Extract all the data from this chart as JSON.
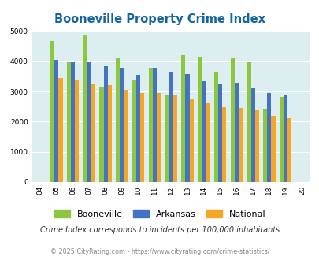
{
  "title": "Booneville Property Crime Index",
  "years": [
    "04",
    "05",
    "06",
    "07",
    "08",
    "09",
    "10",
    "11",
    "12",
    "13",
    "14",
    "15",
    "16",
    "17",
    "18",
    "19",
    "20"
  ],
  "booneville": [
    0,
    4680,
    3980,
    4870,
    3170,
    4110,
    3370,
    3800,
    2880,
    4210,
    4160,
    3640,
    4130,
    3970,
    2420,
    2810,
    0
  ],
  "arkansas": [
    0,
    4060,
    3980,
    3970,
    3840,
    3780,
    3560,
    3790,
    3660,
    3590,
    3340,
    3240,
    3300,
    3100,
    2940,
    2880,
    0
  ],
  "national": [
    0,
    3460,
    3360,
    3270,
    3220,
    3060,
    2960,
    2950,
    2870,
    2730,
    2600,
    2490,
    2460,
    2370,
    2200,
    2120,
    0
  ],
  "booneville_color": "#8dc63f",
  "arkansas_color": "#4472c4",
  "national_color": "#f5a623",
  "bg_color": "#ddeef0",
  "ylim": [
    0,
    5000
  ],
  "yticks": [
    0,
    1000,
    2000,
    3000,
    4000,
    5000
  ],
  "note": "Crime Index corresponds to incidents per 100,000 inhabitants",
  "footer": "© 2025 CityRating.com - https://www.cityrating.com/crime-statistics/",
  "title_color": "#1464a0",
  "note_color": "#333333",
  "footer_color": "#888888",
  "bar_width": 0.25
}
